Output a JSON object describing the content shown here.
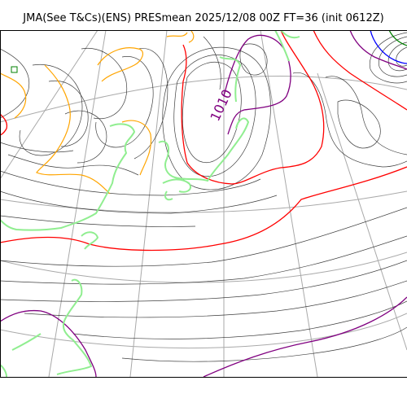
{
  "title": "JMA(See T&Cs)(ENS) PRESmean 2025/12/08 00Z FT=36 (init 0612Z)",
  "isobar_label": "1010",
  "colors": {
    "isobar_thin": "#000000",
    "isobar_1010": "#ff0000",
    "isobar_1020": "#800080",
    "isobar_low": "#0000ff",
    "isobar_green": "#008000",
    "coastline": "#90ee90",
    "orography": "#ffa500",
    "graticule": "#a9a9a9"
  }
}
